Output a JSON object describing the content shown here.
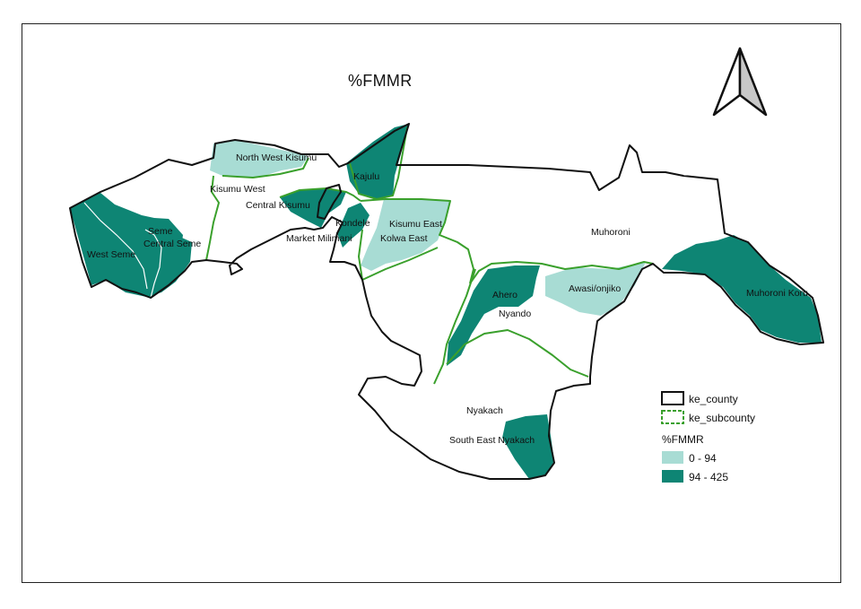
{
  "map": {
    "title": "%FMMR",
    "north_arrow": "north-arrow-icon"
  },
  "legend": {
    "county_layer": "ke_county",
    "subcounty_layer": "ke_subcounty",
    "field": "%FMMR",
    "classes": [
      {
        "label": "0 - 94",
        "color": "#a8dcd4"
      },
      {
        "label": "94 - 425",
        "color": "#0e8574"
      }
    ]
  },
  "colors": {
    "county_border": "#111111",
    "subcounty_border": "#3aa02c",
    "no_data_fill": "#ffffff"
  },
  "places": [
    {
      "name": "North West Kisumu"
    },
    {
      "name": "Kisumu West"
    },
    {
      "name": "Central Kisumu"
    },
    {
      "name": "Kajulu"
    },
    {
      "name": "Kondele"
    },
    {
      "name": "Market Milimani"
    },
    {
      "name": "Kisumu East"
    },
    {
      "name": "Kolwa East"
    },
    {
      "name": "Seme"
    },
    {
      "name": "Central Seme"
    },
    {
      "name": "West Seme"
    },
    {
      "name": "Muhoroni"
    },
    {
      "name": "Muhoroni Koru"
    },
    {
      "name": "Ahero"
    },
    {
      "name": "Nyando"
    },
    {
      "name": "Awasi/onjiko"
    },
    {
      "name": "Nyakach"
    },
    {
      "name": "South East Nyakach"
    }
  ]
}
